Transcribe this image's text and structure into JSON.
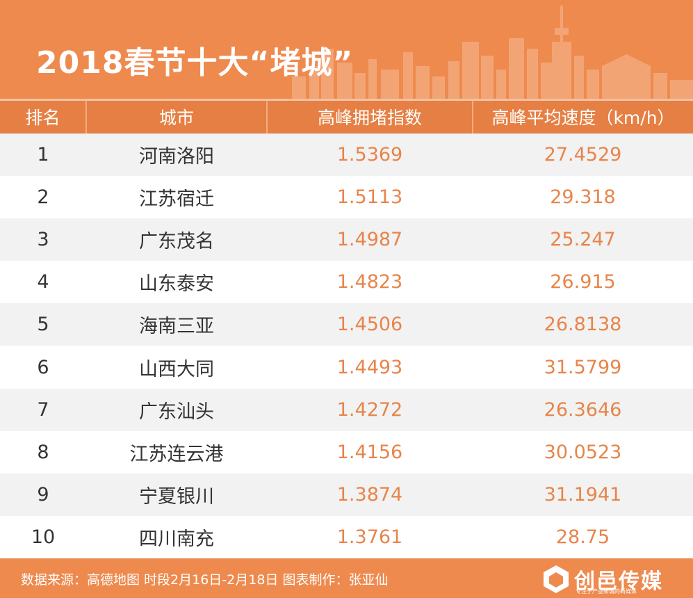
{
  "title": "2018春节十大“堵城”",
  "chart_data": {
    "type": "table",
    "columns": [
      "排名",
      "城市",
      "高峰拥堵指数",
      "高峰平均速度（km/h）"
    ],
    "rows": [
      {
        "rank": "1",
        "city": "河南洛阳",
        "index": "1.5369",
        "speed": "27.4529"
      },
      {
        "rank": "2",
        "city": "江苏宿迁",
        "index": "1.5113",
        "speed": "29.318"
      },
      {
        "rank": "3",
        "city": "广东茂名",
        "index": "1.4987",
        "speed": "25.247"
      },
      {
        "rank": "4",
        "city": "山东泰安",
        "index": "1.4823",
        "speed": "26.915"
      },
      {
        "rank": "5",
        "city": "海南三亚",
        "index": "1.4506",
        "speed": "26.8138"
      },
      {
        "rank": "6",
        "city": "山西大同",
        "index": "1.4493",
        "speed": "31.5799"
      },
      {
        "rank": "7",
        "city": "广东汕头",
        "index": "1.4272",
        "speed": "26.3646"
      },
      {
        "rank": "8",
        "city": "江苏连云港",
        "index": "1.4156",
        "speed": "30.0523"
      },
      {
        "rank": "9",
        "city": "宁夏银川",
        "index": "1.3874",
        "speed": "31.1941"
      },
      {
        "rank": "10",
        "city": "四川南充",
        "index": "1.3761",
        "speed": "28.75"
      }
    ]
  },
  "footer": {
    "source": "数据来源：高德地图  时段2月16日-2月18日  图表制作：张亚仙",
    "logo": "创邑传媒",
    "logo_sub": "专注于产业新城的新媒体"
  },
  "colors": {
    "accent": "#ee8a4e",
    "header": "#e67f43",
    "number": "#e8844a",
    "stripe": "#f2f2f2"
  }
}
